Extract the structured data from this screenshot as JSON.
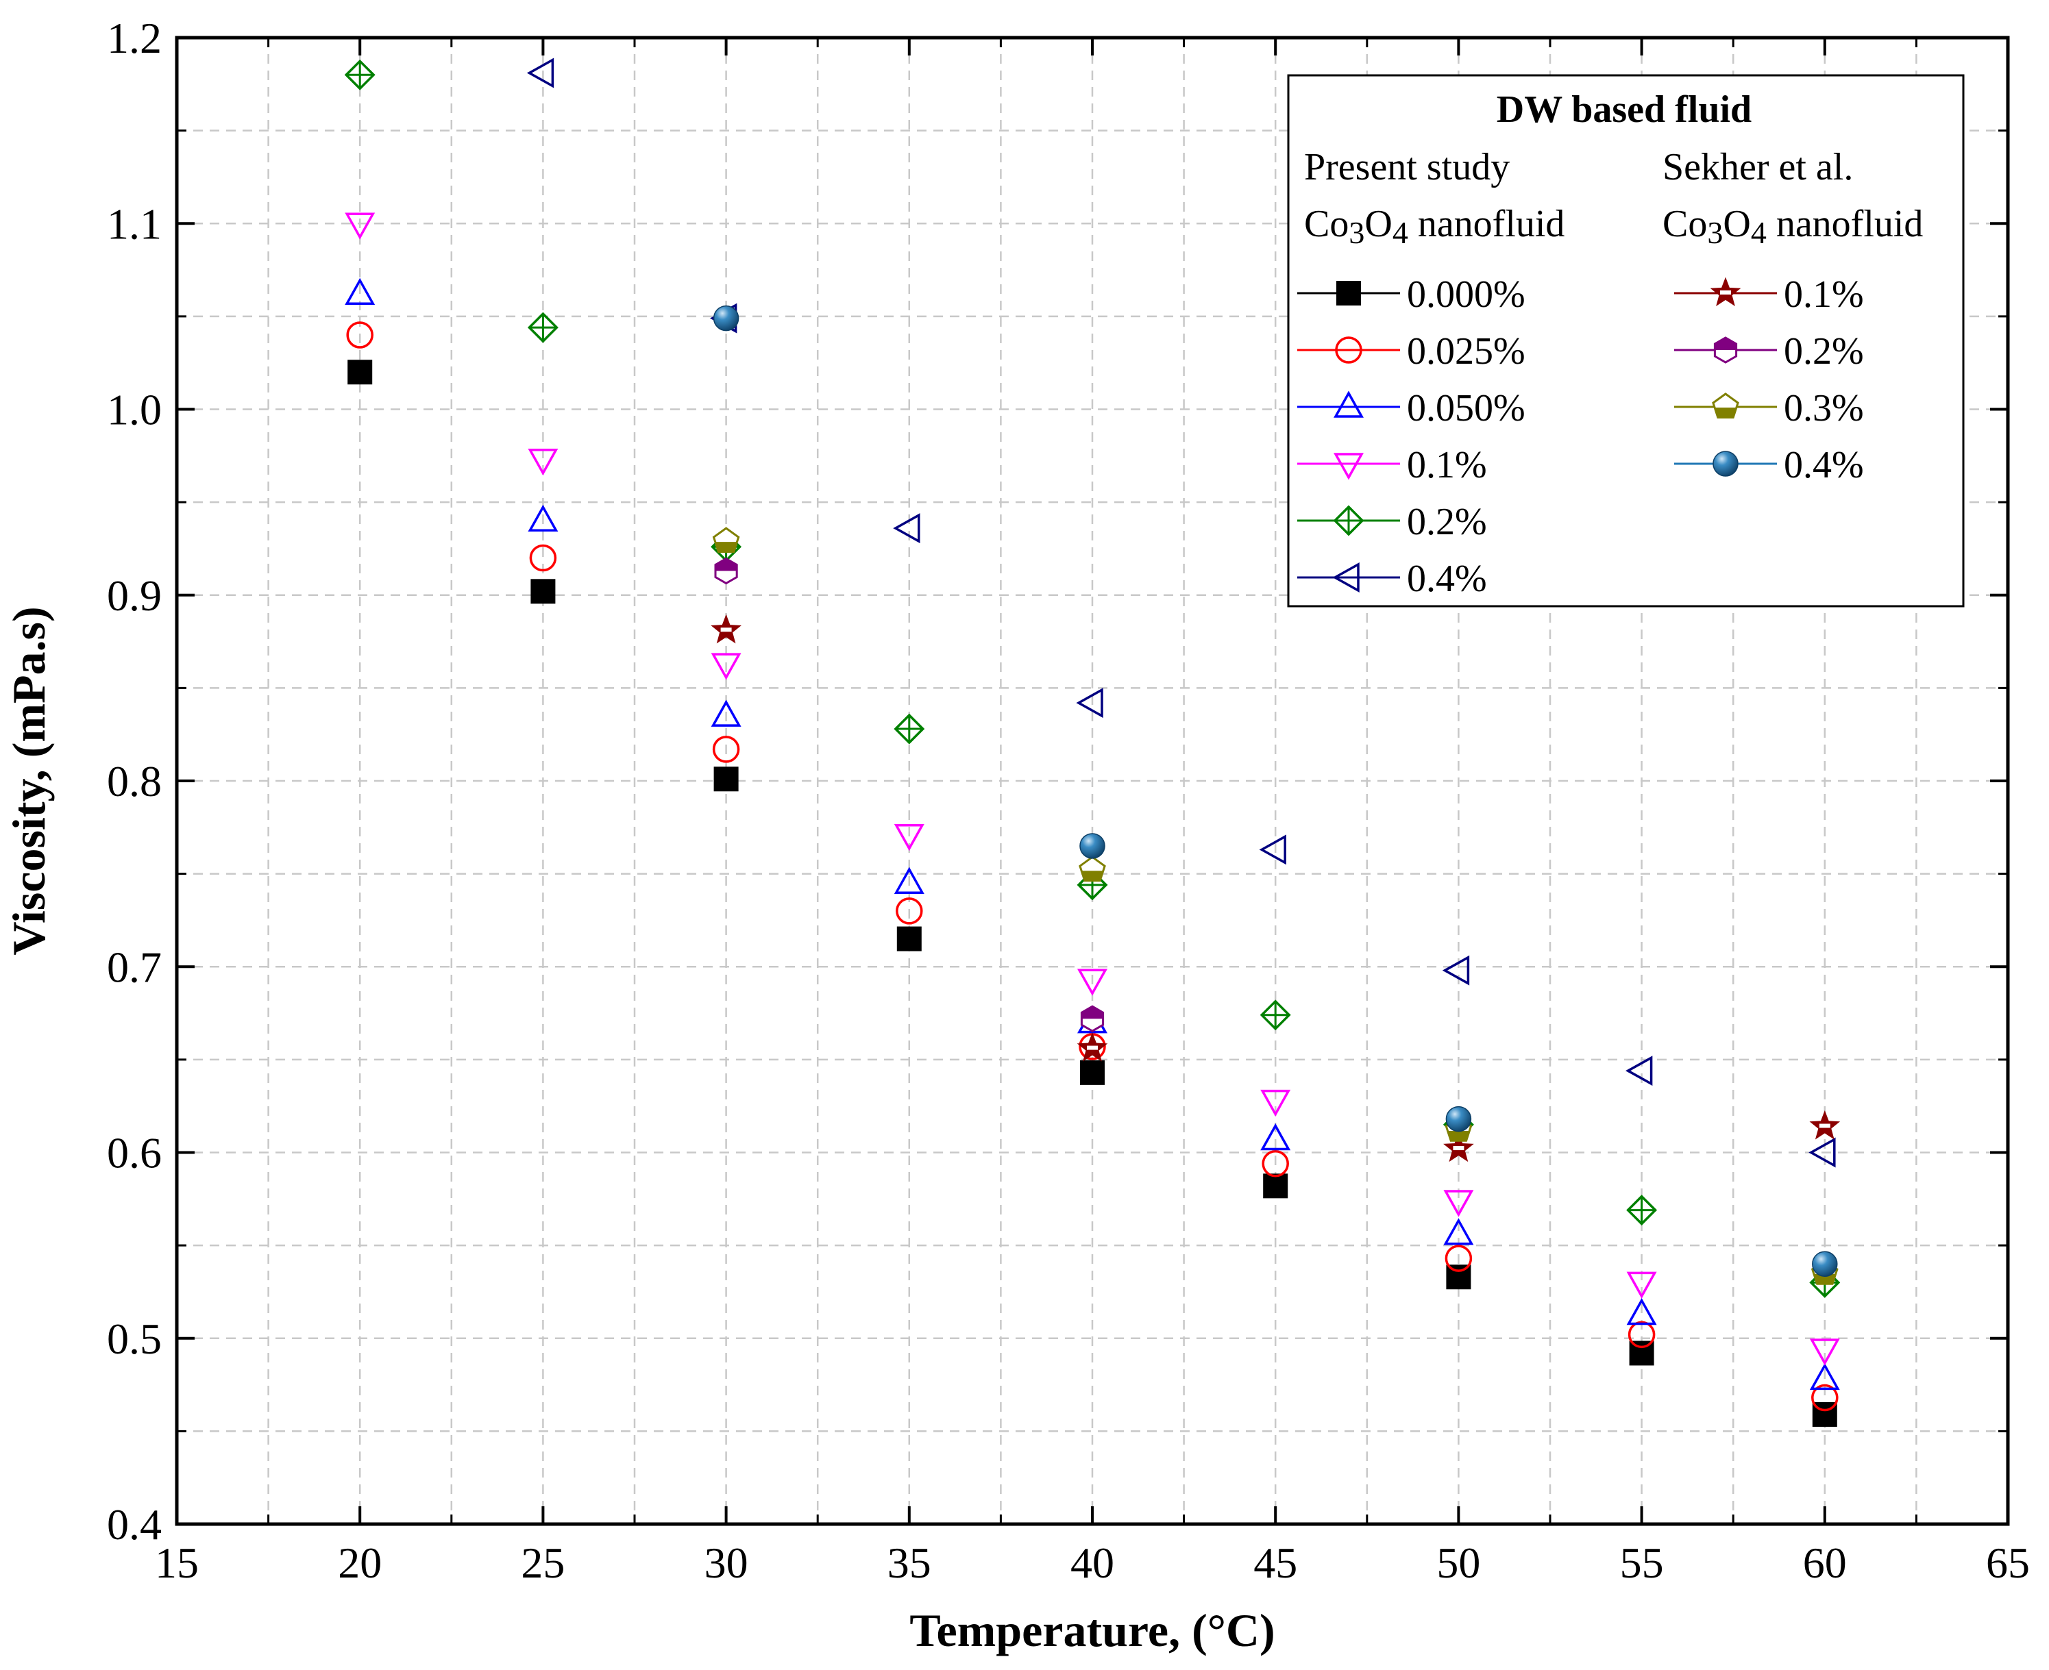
{
  "chart_data": {
    "type": "scatter",
    "title": "",
    "xlabel": "Temperature, (°C)",
    "ylabel": "Viscosity, (mPa.s)",
    "xlim": [
      15,
      65
    ],
    "ylim": [
      0.4,
      1.2
    ],
    "grid": true,
    "xticks": [
      15,
      20,
      25,
      30,
      35,
      40,
      45,
      50,
      55,
      60,
      65
    ],
    "yticks": [
      0.4,
      0.5,
      0.6,
      0.7,
      0.8,
      0.9,
      1.0,
      1.1,
      1.2
    ],
    "ytick_labels": [
      "0.4",
      "0.5",
      "0.6",
      "0.7",
      "0.8",
      "0.9",
      "1.0",
      "1.1",
      "1.2"
    ],
    "legend": {
      "title": "DW based fluid",
      "placement": "top-right",
      "group1_heading": "Present study",
      "group2_heading": "Sekher et al.",
      "group2_heading_color": "#0000ff",
      "subheading_prefix": "Co",
      "subheading_sub1": "3",
      "subheading_mid": "O",
      "subheading_sub2": "4",
      "subheading_suffix": " nanofluid"
    },
    "series": [
      {
        "group": "present",
        "name": "0.000%",
        "marker": "square-filled",
        "color": "#000000",
        "x": [
          20,
          25,
          30,
          35,
          40,
          45,
          50,
          55,
          60
        ],
        "y": [
          1.02,
          0.902,
          0.801,
          0.715,
          0.643,
          0.582,
          0.533,
          0.492,
          0.459
        ]
      },
      {
        "group": "present",
        "name": "0.025%",
        "marker": "circle-open",
        "color": "#ff0000",
        "x": [
          20,
          25,
          30,
          35,
          40,
          45,
          50,
          55,
          60
        ],
        "y": [
          1.04,
          0.92,
          0.817,
          0.73,
          0.657,
          0.594,
          0.543,
          0.502,
          0.468
        ]
      },
      {
        "group": "present",
        "name": "0.050%",
        "marker": "triangle-up-open",
        "color": "#0000ff",
        "x": [
          20,
          25,
          30,
          35,
          40,
          45,
          50,
          55,
          60
        ],
        "y": [
          1.062,
          0.94,
          0.835,
          0.745,
          0.67,
          0.607,
          0.556,
          0.513,
          0.478
        ]
      },
      {
        "group": "present",
        "name": "0.1%",
        "marker": "triangle-down-open",
        "color": "#ff00ff",
        "x": [
          20,
          25,
          30,
          35,
          40,
          45,
          50,
          55,
          60
        ],
        "y": [
          1.1,
          0.973,
          0.863,
          0.771,
          0.693,
          0.628,
          0.574,
          0.53,
          0.494
        ]
      },
      {
        "group": "present",
        "name": "0.2%",
        "marker": "diamond-cross-open",
        "color": "#008000",
        "x": [
          20,
          25,
          30,
          35,
          40,
          45,
          50,
          55,
          60
        ],
        "y": [
          1.18,
          1.044,
          0.926,
          0.828,
          0.744,
          0.674,
          0.615,
          0.569,
          0.53
        ]
      },
      {
        "group": "present",
        "name": "0.4%",
        "marker": "triangle-left-open",
        "color": "#000080",
        "x": [
          25,
          30,
          35,
          40,
          45,
          50,
          55,
          60
        ],
        "y": [
          1.181,
          1.049,
          0.936,
          0.842,
          0.763,
          0.698,
          0.644,
          0.6
        ]
      },
      {
        "group": "sekher",
        "name": "0.1%",
        "marker": "star-half",
        "color": "#8b0000",
        "x": [
          30,
          40,
          50,
          60
        ],
        "y": [
          0.881,
          0.656,
          0.602,
          0.614
        ]
      },
      {
        "group": "sekher",
        "name": "0.2%",
        "marker": "hexagon-half",
        "color": "#800080",
        "x": [
          30,
          40
        ],
        "y": [
          0.913,
          0.672
        ]
      },
      {
        "group": "sekher",
        "name": "0.3%",
        "marker": "pentagon-half",
        "color": "#808000",
        "x": [
          30,
          40,
          50,
          60
        ],
        "y": [
          0.929,
          0.752,
          0.612,
          0.535
        ]
      },
      {
        "group": "sekher",
        "name": "0.4%",
        "marker": "sphere",
        "color": "#1f77b4",
        "x": [
          30,
          40,
          50,
          60
        ],
        "y": [
          1.049,
          0.765,
          0.618,
          0.54
        ]
      }
    ]
  }
}
